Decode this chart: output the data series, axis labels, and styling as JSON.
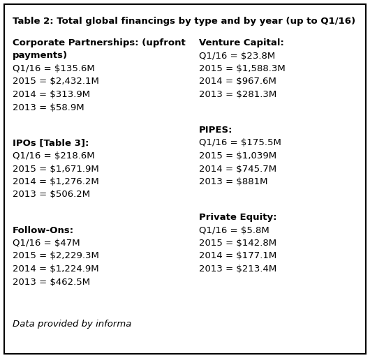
{
  "title": "Table 2: Total global financings by type and by year (up to Q1/16)",
  "background_color": "#ffffff",
  "border_color": "#000000",
  "left_column_sections": [
    {
      "header_lines": [
        "Corporate Partnerships: (upfront",
        "payments)"
      ],
      "data_lines": [
        "Q1/16 = $135.6M",
        "2015 = $2,432.1M",
        "2014 = $313.9M",
        "2013 = $58.9M"
      ]
    },
    {
      "header_lines": [
        "IPOs [Table 3]:"
      ],
      "data_lines": [
        "Q1/16 = $218.6M",
        "2015 = $1,671.9M",
        "2014 = $1,276.2M",
        "2013 = $506.2M"
      ]
    },
    {
      "header_lines": [
        "Follow-Ons:"
      ],
      "data_lines": [
        "Q1/16 = $47M",
        "2015 = $2,229.3M",
        "2014 = $1,224.9M",
        "2013 = $462.5M"
      ]
    }
  ],
  "right_column_sections": [
    {
      "header_lines": [
        "Venture Capital:"
      ],
      "data_lines": [
        "Q1/16 = $23.8M",
        "2015 = $1,588.3M",
        "2014 = $967.6M",
        "2013 = $281.3M"
      ]
    },
    {
      "header_lines": [
        "PIPES:"
      ],
      "data_lines": [
        "Q1/16 = $175.5M",
        "2015 = $1,039M",
        "2014 = $745.7M",
        "2013 = $881M"
      ]
    },
    {
      "header_lines": [
        "Private Equity:"
      ],
      "data_lines": [
        "Q1/16 = $5.8M",
        "2015 = $142.8M",
        "2014 = $177.1M",
        "2013 = $213.4M"
      ]
    }
  ],
  "footer": "Data provided by informa",
  "font_size": 9.5,
  "title_font_size": 9.5
}
